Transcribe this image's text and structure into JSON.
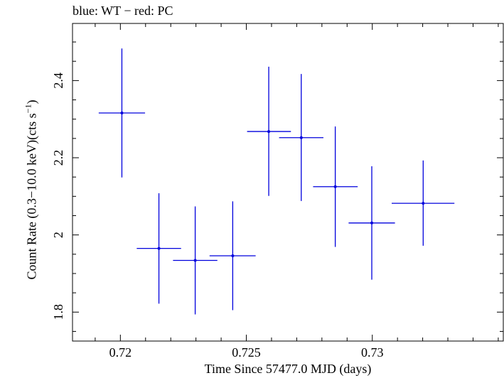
{
  "chart_data": {
    "type": "scatter",
    "title": "blue: WT − red: PC",
    "xlabel": "Time Since 57477.0 MJD (days)",
    "ylabel_main": "Count Rate (0.3−10.0 keV)(cts s",
    "ylabel_sup": "−1",
    "ylabel_end": ")",
    "xlim": [
      0.7181,
      0.7352
    ],
    "ylim": [
      1.725,
      2.548
    ],
    "xticks": [
      {
        "value": 0.72,
        "label": "0.72"
      },
      {
        "value": 0.725,
        "label": "0.725"
      },
      {
        "value": 0.73,
        "label": "0.73"
      }
    ],
    "x_minor_step": 0.001,
    "yticks": [
      {
        "value": 1.8,
        "label": "1.8"
      },
      {
        "value": 2.0,
        "label": "2"
      },
      {
        "value": 2.2,
        "label": "2.2"
      },
      {
        "value": 2.4,
        "label": "2.4"
      }
    ],
    "y_minor_step": 0.05,
    "series": [
      {
        "color": "#0000dd",
        "points": [
          {
            "x": 0.72006,
            "y": 2.316,
            "xlo": 0.71914,
            "xhi": 0.72098,
            "ylo": 2.149,
            "yhi": 2.483
          },
          {
            "x": 0.72153,
            "y": 1.965,
            "xlo": 0.72065,
            "xhi": 0.72241,
            "ylo": 1.822,
            "yhi": 2.108
          },
          {
            "x": 0.72297,
            "y": 1.934,
            "xlo": 0.72209,
            "xhi": 0.72385,
            "ylo": 1.794,
            "yhi": 2.074
          },
          {
            "x": 0.72446,
            "y": 1.946,
            "xlo": 0.72354,
            "xhi": 0.72537,
            "ylo": 1.805,
            "yhi": 2.087
          },
          {
            "x": 0.72589,
            "y": 2.268,
            "xlo": 0.72503,
            "xhi": 0.72677,
            "ylo": 2.101,
            "yhi": 2.436
          },
          {
            "x": 0.72718,
            "y": 2.252,
            "xlo": 0.7263,
            "xhi": 0.72806,
            "ylo": 2.088,
            "yhi": 2.417
          },
          {
            "x": 0.72853,
            "y": 2.125,
            "xlo": 0.72765,
            "xhi": 0.72942,
            "ylo": 1.969,
            "yhi": 2.281
          },
          {
            "x": 0.72998,
            "y": 2.031,
            "xlo": 0.72906,
            "xhi": 0.7309,
            "ylo": 1.884,
            "yhi": 2.178
          },
          {
            "x": 0.73202,
            "y": 2.082,
            "xlo": 0.73077,
            "xhi": 0.73326,
            "ylo": 1.972,
            "yhi": 2.193
          }
        ]
      }
    ]
  }
}
